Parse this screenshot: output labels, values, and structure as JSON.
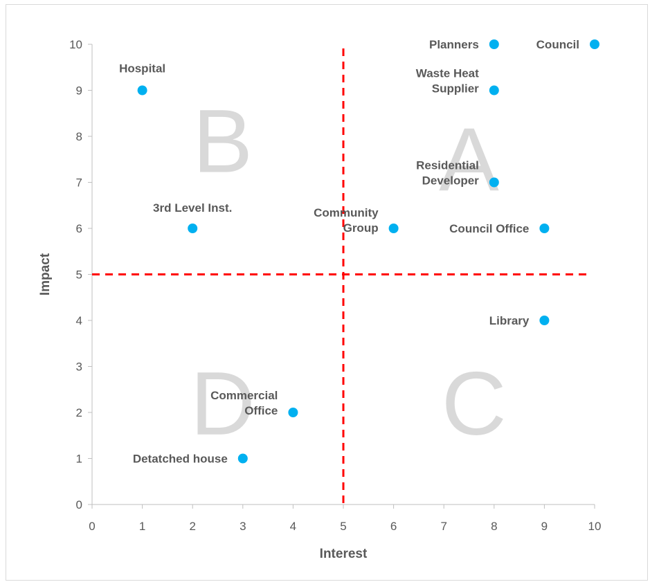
{
  "chart_data": {
    "type": "scatter",
    "title": "",
    "xlabel": "Interest",
    "ylabel": "Impact",
    "xlim": [
      0,
      10
    ],
    "ylim": [
      0,
      10
    ],
    "x_ticks": [
      "0",
      "1",
      "2",
      "3",
      "4",
      "5",
      "6",
      "7",
      "8",
      "9",
      "10"
    ],
    "y_ticks": [
      "0",
      "1",
      "2",
      "3",
      "4",
      "5",
      "6",
      "7",
      "8",
      "9",
      "10"
    ],
    "grid": false,
    "legend": "none",
    "marker_color": "#00b0f0",
    "divider_color": "#ff0000",
    "dividers": {
      "x": 5,
      "y": 5
    },
    "quadrants": [
      {
        "letter": "A",
        "x": 7.5,
        "y": 7.5
      },
      {
        "letter": "B",
        "x": 2.6,
        "y": 7.9
      },
      {
        "letter": "C",
        "x": 7.6,
        "y": 2.2
      },
      {
        "letter": "D",
        "x": 2.6,
        "y": 2.2
      }
    ],
    "points": [
      {
        "label": [
          "Planners"
        ],
        "x": 8,
        "y": 10
      },
      {
        "label": [
          "Council"
        ],
        "x": 10,
        "y": 10
      },
      {
        "label": [
          "Hospital"
        ],
        "x": 1,
        "y": 9
      },
      {
        "label": [
          "Waste Heat",
          "Supplier"
        ],
        "x": 8,
        "y": 9
      },
      {
        "label": [
          "Residential",
          "Developer"
        ],
        "x": 8,
        "y": 7
      },
      {
        "label": [
          "3rd Level Inst."
        ],
        "x": 2,
        "y": 6
      },
      {
        "label": [
          "Community",
          "Group"
        ],
        "x": 6,
        "y": 6
      },
      {
        "label": [
          "Council Office"
        ],
        "x": 9,
        "y": 6
      },
      {
        "label": [
          "Library"
        ],
        "x": 9,
        "y": 4
      },
      {
        "label": [
          "Commercial",
          "Office"
        ],
        "x": 4,
        "y": 2
      },
      {
        "label": [
          "Detatched house"
        ],
        "x": 3,
        "y": 1
      }
    ]
  }
}
